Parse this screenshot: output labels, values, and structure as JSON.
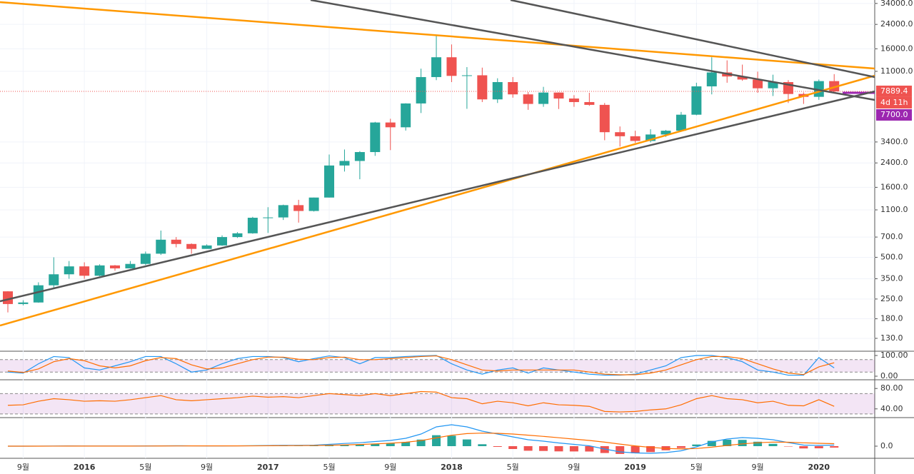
{
  "chart_data": [
    {
      "type": "candlestick",
      "log_scale": true,
      "grid": true,
      "up_color": "#26a69a",
      "down_color": "#ef5350",
      "categories": [
        null,
        "9월",
        null,
        null,
        null,
        "2016",
        null,
        null,
        null,
        "5월",
        null,
        null,
        null,
        "9월",
        null,
        null,
        null,
        "2017",
        null,
        null,
        null,
        "5월",
        null,
        null,
        null,
        "9월",
        null,
        null,
        null,
        "2018",
        null,
        null,
        null,
        "5월",
        null,
        null,
        null,
        "9월",
        null,
        null,
        null,
        "2019",
        null,
        null,
        null,
        "5월",
        null,
        null,
        null,
        "9월",
        null,
        null,
        null,
        "2020",
        null
      ],
      "open": [
        284,
        230,
        236,
        314,
        377,
        430,
        368,
        437,
        416,
        448,
        531,
        670,
        624,
        575,
        609,
        700,
        745,
        965,
        970,
        1190,
        1080,
        1350,
        2300,
        2480,
        2875,
        4700,
        4340,
        6450,
        10000,
        13900,
        10200,
        10300,
        6900,
        9200,
        7500,
        6400,
        7730,
        7000,
        6600,
        6300,
        4000,
        3740,
        3460,
        3850,
        4100,
        5350,
        8570,
        10800,
        10100,
        9600,
        8300,
        9200,
        7550,
        7200,
        9350
      ],
      "high": [
        285,
        245,
        330,
        500,
        470,
        460,
        445,
        440,
        470,
        550,
        780,
        700,
        630,
        620,
        720,
        760,
        980,
        1150,
        1200,
        1300,
        1350,
        2760,
        3000,
        2920,
        4750,
        5000,
        6470,
        11500,
        19800,
        17200,
        11800,
        11700,
        9800,
        10000,
        7800,
        8500,
        7760,
        7400,
        7700,
        6500,
        4400,
        4100,
        4200,
        4150,
        5600,
        9100,
        13900,
        13200,
        12300,
        10950,
        10400,
        9500,
        7750,
        9600,
        10500
      ],
      "low": [
        200,
        225,
        235,
        300,
        350,
        350,
        365,
        400,
        415,
        440,
        520,
        590,
        530,
        590,
        605,
        690,
        740,
        750,
        930,
        890,
        1070,
        1350,
        2080,
        1830,
        2700,
        2970,
        4110,
        5500,
        9500,
        9200,
        5900,
        6600,
        6500,
        7100,
        5800,
        6100,
        5880,
        6100,
        6200,
        3500,
        3150,
        3350,
        3380,
        3700,
        4050,
        5300,
        7500,
        9100,
        9400,
        7700,
        7300,
        6500,
        6400,
        6850,
        7700
      ],
      "close": [
        230,
        236,
        314,
        377,
        430,
        368,
        437,
        416,
        448,
        531,
        670,
        624,
        575,
        609,
        700,
        745,
        965,
        970,
        1190,
        1080,
        1350,
        2300,
        2480,
        2875,
        4700,
        4340,
        6450,
        10000,
        13900,
        10200,
        10300,
        6900,
        9200,
        7500,
        6400,
        7730,
        7000,
        6600,
        6300,
        4000,
        3740,
        3460,
        3850,
        4100,
        5350,
        8570,
        10800,
        10100,
        9600,
        8300,
        9200,
        7550,
        7200,
        9350,
        7889.4
      ],
      "ylim": [
        107.5,
        36000
      ],
      "yticks": [
        {
          "value": 34000,
          "label": "34000.0"
        },
        {
          "value": 24000,
          "label": "24000.0"
        },
        {
          "value": 16000,
          "label": "16000.0"
        },
        {
          "value": 11000,
          "label": "11000.0"
        },
        {
          "value": 3400,
          "label": "3400.0"
        },
        {
          "value": 2400,
          "label": "2400.0"
        },
        {
          "value": 1600,
          "label": "1600.0"
        },
        {
          "value": 1100,
          "label": "1100.0"
        },
        {
          "value": 700,
          "label": "700.0"
        },
        {
          "value": 500,
          "label": "500.0"
        },
        {
          "value": 350,
          "label": "350.0"
        },
        {
          "value": 250,
          "label": "250.0"
        },
        {
          "value": 180,
          "label": "180.0"
        },
        {
          "value": 130,
          "label": "130.0"
        }
      ],
      "countdown": "4d 11h",
      "alert": {
        "value": 7700,
        "label": "7700.0"
      },
      "alert_color": "#9c27b0"
    },
    {
      "type": "line",
      "band": [
        20,
        80
      ],
      "band_color": "#9c27b0",
      "series": [
        {
          "color": "#2196f3",
          "values": [
            20,
            15,
            60,
            95,
            90,
            40,
            30,
            50,
            70,
            95,
            95,
            60,
            20,
            30,
            60,
            85,
            95,
            95,
            90,
            70,
            85,
            98,
            90,
            60,
            90,
            90,
            95,
            98,
            100,
            60,
            30,
            10,
            30,
            40,
            15,
            40,
            30,
            20,
            10,
            5,
            5,
            10,
            30,
            50,
            90,
            100,
            100,
            90,
            70,
            30,
            20,
            5,
            5,
            90,
            40
          ]
        },
        {
          "color": "#ff6d00",
          "values": [
            25,
            18,
            35,
            70,
            85,
            75,
            50,
            40,
            50,
            75,
            90,
            85,
            55,
            35,
            40,
            60,
            80,
            92,
            92,
            82,
            80,
            90,
            92,
            80,
            80,
            85,
            90,
            95,
            98,
            80,
            55,
            30,
            25,
            30,
            30,
            30,
            30,
            30,
            20,
            10,
            7,
            7,
            15,
            30,
            55,
            80,
            95,
            95,
            85,
            60,
            35,
            15,
            8,
            45,
            65
          ]
        }
      ],
      "ylim": [
        -13.8,
        113.8
      ],
      "yticks": [
        {
          "value": 100,
          "label": "100.00"
        },
        {
          "value": 0,
          "label": "0.00"
        }
      ]
    },
    {
      "type": "line",
      "band": [
        30,
        70
      ],
      "band_color": "#9c27b0",
      "series": [
        {
          "color": "#ff6d00",
          "values": [
            47,
            48,
            55,
            60,
            58,
            55,
            56,
            55,
            58,
            62,
            66,
            58,
            56,
            58,
            60,
            62,
            65,
            63,
            64,
            62,
            66,
            70,
            68,
            66,
            70,
            66,
            70,
            74,
            73,
            62,
            60,
            50,
            55,
            52,
            46,
            52,
            48,
            47,
            45,
            35,
            34,
            35,
            38,
            40,
            48,
            60,
            66,
            60,
            58,
            52,
            55,
            47,
            46,
            58,
            45
          ]
        }
      ],
      "ylim": [
        24.3,
        95.7
      ],
      "yticks": [
        {
          "value": 80,
          "label": "80.00"
        },
        {
          "value": 40,
          "label": "40.00"
        }
      ]
    },
    {
      "type": "macd",
      "series": [
        {
          "color": "#2196f3",
          "values": [
            0,
            0,
            5,
            15,
            25,
            20,
            15,
            12,
            15,
            25,
            45,
            50,
            45,
            40,
            40,
            45,
            65,
            90,
            120,
            120,
            140,
            250,
            380,
            480,
            650,
            800,
            1100,
            1700,
            2700,
            3000,
            2700,
            2100,
            1700,
            1300,
            900,
            700,
            450,
            250,
            50,
            -400,
            -800,
            -950,
            -1000,
            -900,
            -650,
            -100,
            600,
            1000,
            1200,
            1100,
            900,
            500,
            150,
            100,
            150
          ]
        },
        {
          "color": "#ff6d00",
          "values": [
            0,
            0,
            2,
            6,
            12,
            15,
            15,
            14,
            14,
            17,
            25,
            32,
            36,
            37,
            38,
            40,
            46,
            57,
            71,
            81,
            93,
            124,
            175,
            236,
            319,
            415,
            552,
            781,
            1165,
            1530,
            1760,
            1830,
            1800,
            1700,
            1540,
            1370,
            1180,
            990,
            800,
            560,
            290,
            40,
            -170,
            -320,
            -390,
            -330,
            -140,
            100,
            320,
            480,
            570,
            550,
            470,
            400,
            350
          ]
        }
      ],
      "histogram": [
        0,
        0,
        3,
        9,
        13,
        5,
        0,
        -2,
        1,
        8,
        20,
        18,
        9,
        3,
        2,
        5,
        19,
        33,
        49,
        39,
        47,
        126,
        205,
        244,
        331,
        385,
        548,
        919,
        1535,
        1470,
        940,
        270,
        -100,
        -400,
        -640,
        -670,
        -730,
        -740,
        -750,
        -960,
        -1090,
        -990,
        -830,
        -580,
        -260,
        230,
        740,
        900,
        880,
        620,
        330,
        -50,
        -320,
        -300,
        -200
      ],
      "up_color": "#26a69a",
      "down_color": "#ef5350",
      "ylim": [
        -1500,
        3900
      ],
      "yticks": [
        {
          "value": 0,
          "label": "0.0"
        }
      ]
    }
  ]
}
